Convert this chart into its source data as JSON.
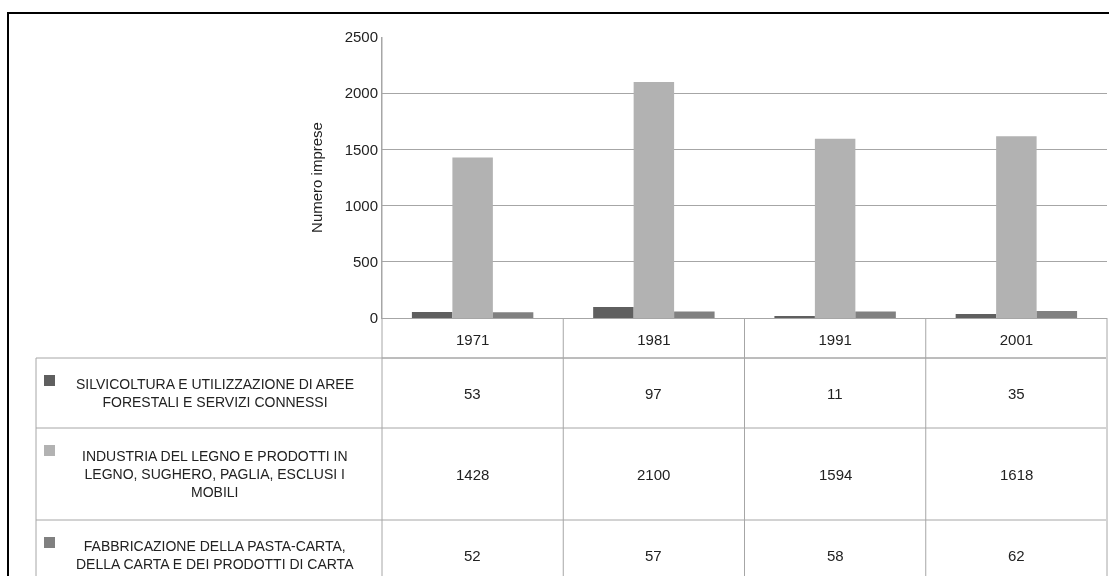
{
  "chart_data": {
    "type": "bar",
    "ylabel": "Numero imprese",
    "categories": [
      "1971",
      "1981",
      "1991",
      "2001"
    ],
    "series": [
      {
        "name": "SILVICOLTURA E UTILIZZAZIONE DI AREE FORESTALI E SERVIZI CONNESSI",
        "color": "#5f5f5f",
        "values": [
          53,
          97,
          11,
          35
        ]
      },
      {
        "name": "INDUSTRIA DEL LEGNO E PRODOTTI IN LEGNO, SUGHERO, PAGLIA, ESCLUSI I MOBILI",
        "color": "#b2b2b2",
        "values": [
          1428,
          2100,
          1594,
          1618
        ]
      },
      {
        "name": "FABBRICAZIONE DELLA PASTA-CARTA, DELLA CARTA E DEI PRODOTTI DI CARTA",
        "color": "#808080",
        "values": [
          52,
          57,
          58,
          62
        ]
      }
    ],
    "ylim": [
      0,
      2500
    ],
    "yticks": [
      0,
      500,
      1000,
      1500,
      2000,
      2500
    ],
    "grid": "y",
    "data_labels": true,
    "legend": "bottom left"
  }
}
